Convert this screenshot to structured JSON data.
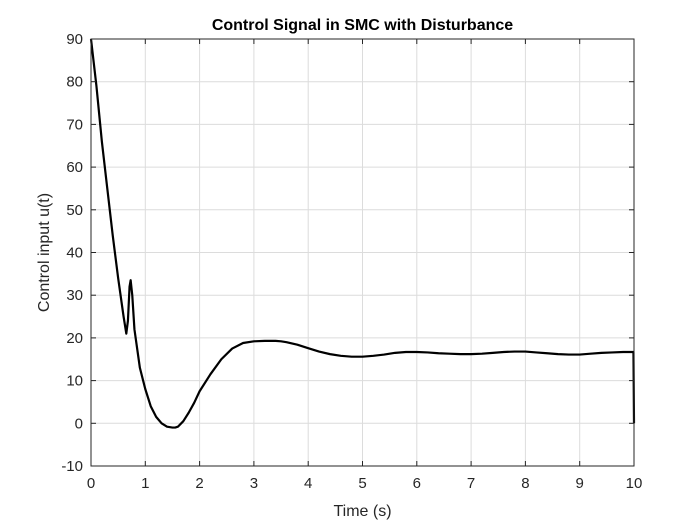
{
  "chart_data": {
    "type": "line",
    "title": "Control Signal in SMC with Disturbance",
    "xlabel": "Time (s)",
    "ylabel": "Control input u(t)",
    "xlim": [
      0,
      10
    ],
    "ylim": [
      -10,
      90
    ],
    "xticks": [
      0,
      1,
      2,
      3,
      4,
      5,
      6,
      7,
      8,
      9,
      10
    ],
    "yticks": [
      -10,
      0,
      10,
      20,
      30,
      40,
      50,
      60,
      70,
      80,
      90
    ],
    "grid": true,
    "legend": "none",
    "series": [
      {
        "color": "#000000",
        "x": [
          0,
          0.1,
          0.2,
          0.3,
          0.4,
          0.5,
          0.6,
          0.65,
          0.68,
          0.71,
          0.73,
          0.76,
          0.8,
          0.9,
          1.0,
          1.1,
          1.2,
          1.3,
          1.4,
          1.5,
          1.55,
          1.6,
          1.7,
          1.8,
          1.9,
          2.0,
          2.2,
          2.4,
          2.6,
          2.8,
          3.0,
          3.2,
          3.4,
          3.5,
          3.6,
          3.8,
          4.0,
          4.2,
          4.4,
          4.6,
          4.8,
          5.0,
          5.2,
          5.4,
          5.6,
          5.8,
          6.0,
          6.2,
          6.4,
          6.6,
          6.8,
          7.0,
          7.2,
          7.4,
          7.6,
          7.8,
          8.0,
          8.2,
          8.4,
          8.6,
          8.8,
          9.0,
          9.2,
          9.4,
          9.6,
          9.8,
          9.99,
          10.0
        ],
        "y": [
          90,
          79,
          66,
          55,
          44,
          34,
          25,
          21,
          24,
          32,
          33.5,
          30,
          22,
          13,
          8,
          4,
          1.5,
          0,
          -0.8,
          -1,
          -1,
          -0.8,
          0.5,
          2.5,
          4.8,
          7.5,
          11.5,
          15,
          17.5,
          18.8,
          19.2,
          19.3,
          19.3,
          19.2,
          19,
          18.4,
          17.6,
          16.8,
          16.2,
          15.8,
          15.6,
          15.6,
          15.8,
          16.1,
          16.5,
          16.7,
          16.7,
          16.6,
          16.4,
          16.3,
          16.2,
          16.2,
          16.3,
          16.5,
          16.7,
          16.8,
          16.8,
          16.6,
          16.4,
          16.2,
          16.1,
          16.1,
          16.3,
          16.5,
          16.6,
          16.7,
          16.7,
          0
        ]
      }
    ]
  }
}
